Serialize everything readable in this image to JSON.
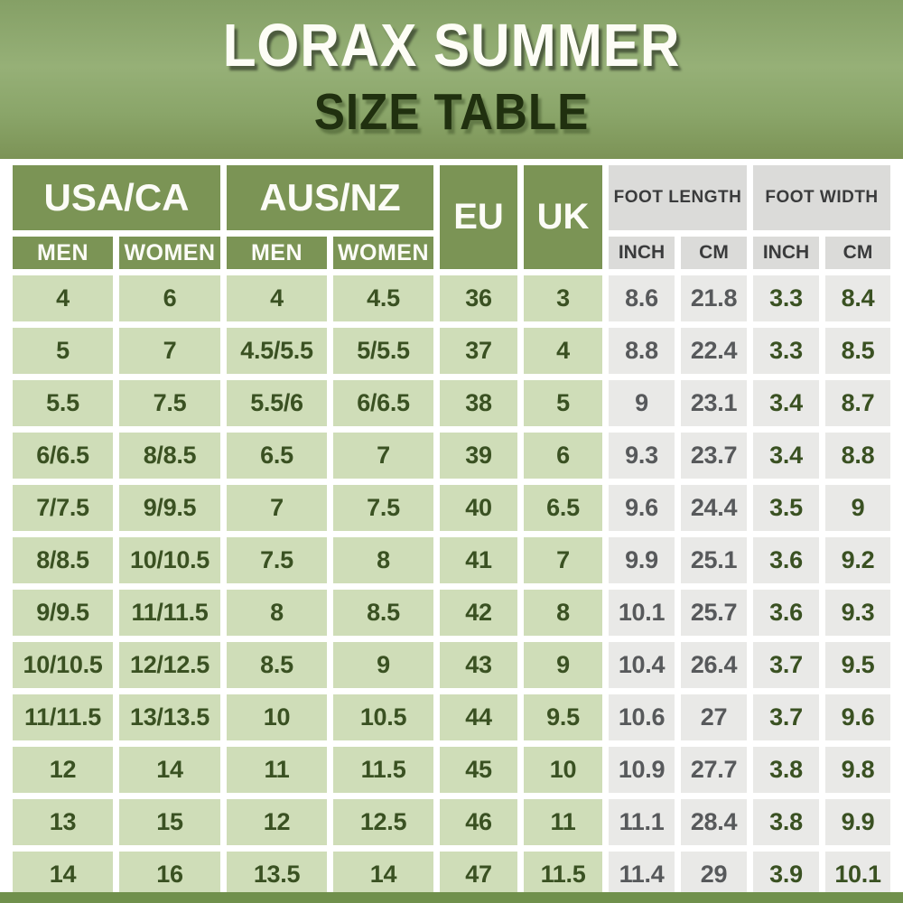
{
  "title": {
    "line1": "LORAX SUMMER",
    "line2": "SIZE TABLE"
  },
  "colors": {
    "hero_gradient_top": "#85a066",
    "hero_gradient_bottom": "#7c9356",
    "header_green": "#7b9455",
    "header_gray": "#dbdbd9",
    "cell_green": "#cfddb8",
    "cell_gray": "#e9e9e7",
    "text_dark_green": "#3a5122",
    "text_gray": "#57595b",
    "title_light": "#fdfdf6",
    "title_dark": "#20300f",
    "bottom_bar": "#70904c"
  },
  "chart_data": {
    "type": "table",
    "title": "LORAX SUMMER SIZE TABLE",
    "column_groups": [
      {
        "label": "USA/CA",
        "sub": [
          "MEN",
          "WOMEN"
        ]
      },
      {
        "label": "AUS/NZ",
        "sub": [
          "MEN",
          "WOMEN"
        ]
      },
      {
        "label": "EU"
      },
      {
        "label": "UK"
      },
      {
        "label": "FOOT LENGTH",
        "sub": [
          "INCH",
          "CM"
        ]
      },
      {
        "label": "FOOT WIDTH",
        "sub": [
          "INCH",
          "CM"
        ]
      }
    ],
    "columns": [
      "USA/CA MEN",
      "USA/CA WOMEN",
      "AUS/NZ MEN",
      "AUS/NZ WOMEN",
      "EU",
      "UK",
      "FOOT LENGTH INCH",
      "FOOT LENGTH CM",
      "FOOT WIDTH INCH",
      "FOOT WIDTH CM"
    ],
    "rows": [
      [
        "4",
        "6",
        "4",
        "4.5",
        "36",
        "3",
        "8.6",
        "21.8",
        "3.3",
        "8.4"
      ],
      [
        "5",
        "7",
        "4.5/5.5",
        "5/5.5",
        "37",
        "4",
        "8.8",
        "22.4",
        "3.3",
        "8.5"
      ],
      [
        "5.5",
        "7.5",
        "5.5/6",
        "6/6.5",
        "38",
        "5",
        "9",
        "23.1",
        "3.4",
        "8.7"
      ],
      [
        "6/6.5",
        "8/8.5",
        "6.5",
        "7",
        "39",
        "6",
        "9.3",
        "23.7",
        "3.4",
        "8.8"
      ],
      [
        "7/7.5",
        "9/9.5",
        "7",
        "7.5",
        "40",
        "6.5",
        "9.6",
        "24.4",
        "3.5",
        "9"
      ],
      [
        "8/8.5",
        "10/10.5",
        "7.5",
        "8",
        "41",
        "7",
        "9.9",
        "25.1",
        "3.6",
        "9.2"
      ],
      [
        "9/9.5",
        "11/11.5",
        "8",
        "8.5",
        "42",
        "8",
        "10.1",
        "25.7",
        "3.6",
        "9.3"
      ],
      [
        "10/10.5",
        "12/12.5",
        "8.5",
        "9",
        "43",
        "9",
        "10.4",
        "26.4",
        "3.7",
        "9.5"
      ],
      [
        "11/11.5",
        "13/13.5",
        "10",
        "10.5",
        "44",
        "9.5",
        "10.6",
        "27",
        "3.7",
        "9.6"
      ],
      [
        "12",
        "14",
        "11",
        "11.5",
        "45",
        "10",
        "10.9",
        "27.7",
        "3.8",
        "9.8"
      ],
      [
        "13",
        "15",
        "12",
        "12.5",
        "46",
        "11",
        "11.1",
        "28.4",
        "3.8",
        "9.9"
      ],
      [
        "14",
        "16",
        "13.5",
        "14",
        "47",
        "11.5",
        "11.4",
        "29",
        "3.9",
        "10.1"
      ]
    ]
  }
}
